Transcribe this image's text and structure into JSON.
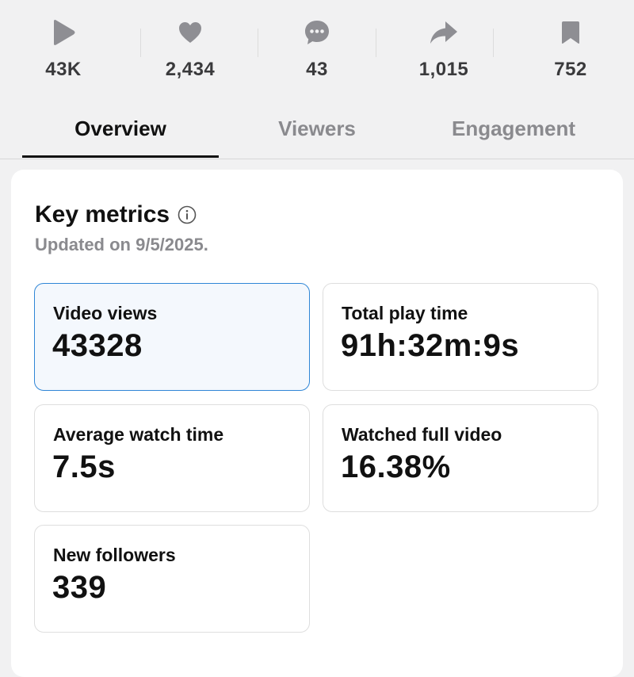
{
  "stats": {
    "plays": "43K",
    "likes": "2,434",
    "comments": "43",
    "shares": "1,015",
    "saves": "752"
  },
  "icons": {
    "plays": "play-icon",
    "likes": "heart-icon",
    "comments": "comment-icon",
    "shares": "share-icon",
    "saves": "bookmark-icon",
    "info": "info-icon"
  },
  "tabs": [
    "Overview",
    "Viewers",
    "Engagement"
  ],
  "key_metrics": {
    "title": "Key metrics",
    "updated": "Updated on 9/5/2025.",
    "items": [
      {
        "label": "Video views",
        "value": "43328"
      },
      {
        "label": "Total play time",
        "value": "91h:32m:9s"
      },
      {
        "label": "Average watch time",
        "value": "7.5s"
      },
      {
        "label": "Watched full video",
        "value": "16.38%"
      },
      {
        "label": "New followers",
        "value": "339"
      }
    ]
  },
  "colors": {
    "icon_gray": "#8e8e93",
    "selected_border": "#2f86d6",
    "selected_bg": "#f4f8fd"
  }
}
